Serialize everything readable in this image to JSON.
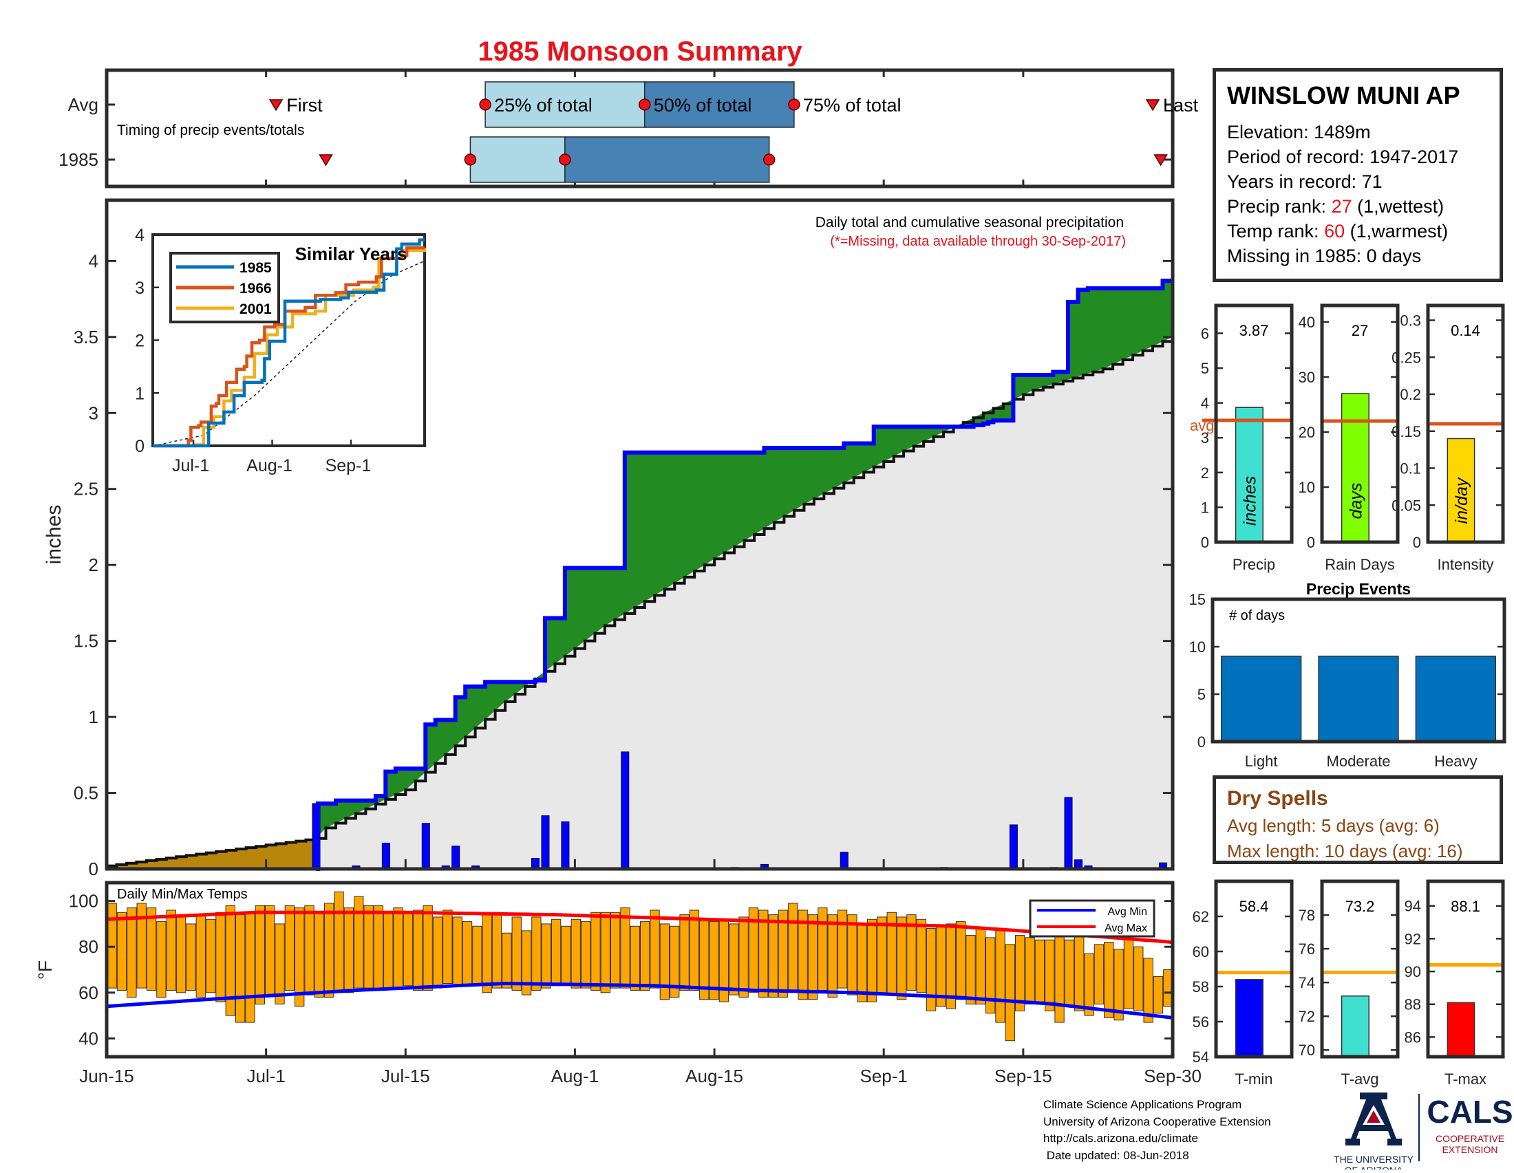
{
  "title": "1985 Monsoon Summary",
  "station": {
    "name": "WINSLOW MUNI AP",
    "elevation": "Elevation: 1489m",
    "period": "Period of record: 1947-2017",
    "years": "Years in record: 71",
    "precip_rank_prefix": "Precip rank: ",
    "precip_rank_value": "27",
    "precip_rank_suffix": " (1,wettest)",
    "temp_rank_prefix": "Temp rank: ",
    "temp_rank_value": "60",
    "temp_rank_suffix": " (1,warmest)",
    "missing": "Missing in 1985: 0 days"
  },
  "dry_spells": {
    "title": "Dry Spells",
    "avg_length": "Avg length: 5 days (avg: 6)",
    "max_length": "Max length: 10 days (avg: 16)"
  },
  "credits": {
    "line1": "Climate Science Applications Program",
    "line2": "University of Arizona Cooperative Extension",
    "line3": "http://cals.arizona.edu/climate",
    "line4": "Date updated: 08-Jun-2018"
  },
  "logos": {
    "ua_line1": "THE UNIVERSITY",
    "ua_line2": "OF ARIZONA",
    "cals": "CALS",
    "cals_line1": "COOPERATIVE",
    "cals_line2": "EXTENSION"
  },
  "colors": {
    "title": "#e8131b",
    "precip_green": "#228b22",
    "cum_blue": "#0000ff",
    "temp_bar": "#ffa500",
    "avg_max": "#ff0000",
    "avg_min": "#0000ff",
    "dry": "#8b4513"
  },
  "chart_data": [
    {
      "id": "timing",
      "type": "bar",
      "title": "1985 Monsoon Summary",
      "xlim": [
        0,
        107
      ],
      "y_categories": [
        "Avg",
        "1985"
      ],
      "annotation": "Timing of precip events/totals",
      "avg": {
        "first": 17,
        "p25": 38,
        "p50": 54,
        "p75": 69,
        "last": 105,
        "first_label": "First",
        "p25_label": "25% of total",
        "p50_label": "50% of total",
        "p75_label": "75% of total",
        "last_label": "Last"
      },
      "year": {
        "first": 22,
        "p25": 36.5,
        "p50": 46,
        "p75": 66.5,
        "last": 105.8
      }
    },
    {
      "id": "precip",
      "type": "area",
      "xlabel": "",
      "ylabel": "inches",
      "ylim": [
        0,
        4.4
      ],
      "yticks": [
        0,
        0.5,
        1,
        1.5,
        2,
        2.5,
        3,
        3.5,
        4
      ],
      "xlim": [
        0,
        107
      ],
      "xticks": [
        {
          "d": 0,
          "label": "Jun-15"
        },
        {
          "d": 16,
          "label": "Jul-1"
        },
        {
          "d": 30,
          "label": "Jul-15"
        },
        {
          "d": 47,
          "label": "Aug-1"
        },
        {
          "d": 61,
          "label": "Aug-15"
        },
        {
          "d": 78,
          "label": "Sep-1"
        },
        {
          "d": 92,
          "label": "Sep-15"
        },
        {
          "d": 107,
          "label": "Sep-30"
        }
      ],
      "annotation": "Daily total and cumulative seasonal precipitation",
      "missing_note": "(*=Missing, data available through 30-Sep-2017)",
      "avg_cumulative": [
        [
          0,
          0.02
        ],
        [
          21,
          0.2
        ],
        [
          22,
          0.27
        ],
        [
          30,
          0.52
        ],
        [
          40,
          1.1
        ],
        [
          50,
          1.6
        ],
        [
          60,
          2.0
        ],
        [
          70,
          2.4
        ],
        [
          80,
          2.75
        ],
        [
          88,
          3.0
        ],
        [
          93,
          3.15
        ],
        [
          100,
          3.29
        ],
        [
          107,
          3.5
        ]
      ],
      "cumulative_1985": [
        [
          21,
          0.0
        ],
        [
          21.2,
          0.43
        ],
        [
          23,
          0.45
        ],
        [
          27,
          0.48
        ],
        [
          28,
          0.64
        ],
        [
          29,
          0.66
        ],
        [
          32,
          0.95
        ],
        [
          33,
          0.98
        ],
        [
          35,
          1.13
        ],
        [
          36,
          1.2
        ],
        [
          38,
          1.23
        ],
        [
          43,
          1.24
        ],
        [
          44,
          1.65
        ],
        [
          46,
          1.98
        ],
        [
          52,
          2.74
        ],
        [
          63,
          2.74
        ],
        [
          66,
          2.77
        ],
        [
          74,
          2.8
        ],
        [
          77,
          2.91
        ],
        [
          82,
          2.91
        ],
        [
          87,
          2.92
        ],
        [
          88,
          2.93
        ],
        [
          88.5,
          2.94
        ],
        [
          89,
          2.95
        ],
        [
          91,
          3.25
        ],
        [
          95,
          3.27
        ],
        [
          96.5,
          3.73
        ],
        [
          97.5,
          3.81
        ],
        [
          98.5,
          3.82
        ],
        [
          106,
          3.87
        ],
        [
          107,
          3.87
        ]
      ],
      "daily_1985": [
        [
          21,
          0.43
        ],
        [
          25,
          0.02
        ],
        [
          28,
          0.17
        ],
        [
          32,
          0.3
        ],
        [
          34,
          0.02
        ],
        [
          35,
          0.15
        ],
        [
          37,
          0.02
        ],
        [
          43,
          0.07
        ],
        [
          44,
          0.35
        ],
        [
          46,
          0.31
        ],
        [
          52,
          0.77
        ],
        [
          63,
          0.01
        ],
        [
          66,
          0.03
        ],
        [
          74,
          0.11
        ],
        [
          84,
          0.01
        ],
        [
          91,
          0.29
        ],
        [
          95,
          0.01
        ],
        [
          96.5,
          0.47
        ],
        [
          97.5,
          0.06
        ],
        [
          98.5,
          0.02
        ],
        [
          106,
          0.04
        ]
      ]
    },
    {
      "id": "similar",
      "type": "line",
      "title": "Similar Years",
      "ylim": [
        0,
        4
      ],
      "xlim": [
        0,
        107
      ],
      "yticks": [
        0,
        1,
        2,
        3,
        4
      ],
      "xticks": [
        {
          "d": 16,
          "label": "Jul-1"
        },
        {
          "d": 47,
          "label": "Aug-1"
        },
        {
          "d": 78,
          "label": "Sep-1"
        }
      ],
      "series": [
        {
          "name": "1985",
          "color": "#0072bd",
          "points": [
            [
              0,
              0
            ],
            [
              21,
              0
            ],
            [
              22,
              0.43
            ],
            [
              28,
              0.64
            ],
            [
              32,
              0.95
            ],
            [
              36,
              1.2
            ],
            [
              43,
              1.24
            ],
            [
              44,
              1.65
            ],
            [
              46,
              1.98
            ],
            [
              52,
              2.74
            ],
            [
              63,
              2.74
            ],
            [
              66,
              2.77
            ],
            [
              74,
              2.8
            ],
            [
              77,
              2.91
            ],
            [
              88,
              2.95
            ],
            [
              91,
              3.25
            ],
            [
              96,
              3.73
            ],
            [
              98,
              3.82
            ],
            [
              105,
              3.9
            ],
            [
              107,
              3.9
            ]
          ]
        },
        {
          "name": "1966",
          "color": "#d95319",
          "points": [
            [
              0,
              0
            ],
            [
              14,
              0.1
            ],
            [
              15,
              0.35
            ],
            [
              18,
              0.38
            ],
            [
              19,
              0.45
            ],
            [
              23,
              0.75
            ],
            [
              25,
              0.8
            ],
            [
              26,
              0.95
            ],
            [
              29,
              1.2
            ],
            [
              32,
              1.2
            ],
            [
              33,
              1.45
            ],
            [
              36,
              1.5
            ],
            [
              37,
              1.7
            ],
            [
              39,
              1.95
            ],
            [
              42,
              2.0
            ],
            [
              44,
              2.25
            ],
            [
              48,
              2.3
            ],
            [
              52,
              2.55
            ],
            [
              60,
              2.62
            ],
            [
              64,
              2.85
            ],
            [
              72,
              2.9
            ],
            [
              76,
              3.05
            ],
            [
              81,
              3.1
            ],
            [
              88,
              3.2
            ],
            [
              90,
              3.55
            ],
            [
              98,
              3.6
            ],
            [
              100,
              3.75
            ],
            [
              107,
              3.75
            ]
          ]
        },
        {
          "name": "2001",
          "color": "#edb120",
          "points": [
            [
              0,
              0
            ],
            [
              17,
              0.02
            ],
            [
              20,
              0.35
            ],
            [
              24,
              0.55
            ],
            [
              28,
              0.85
            ],
            [
              31,
              1.05
            ],
            [
              36,
              1.3
            ],
            [
              40,
              1.75
            ],
            [
              45,
              2.1
            ],
            [
              49,
              2.25
            ],
            [
              55,
              2.5
            ],
            [
              64,
              2.55
            ],
            [
              68,
              2.85
            ],
            [
              76,
              2.85
            ],
            [
              79,
              2.95
            ],
            [
              86,
              2.95
            ],
            [
              87,
              3.0
            ],
            [
              89,
              3.55
            ],
            [
              95,
              3.55
            ],
            [
              98,
              3.7
            ],
            [
              107,
              3.75
            ]
          ]
        }
      ],
      "average_points": [
        [
          0,
          0
        ],
        [
          20,
          0.2
        ],
        [
          40,
          0.95
        ],
        [
          60,
          1.85
        ],
        [
          80,
          2.75
        ],
        [
          95,
          3.25
        ],
        [
          107,
          3.5
        ]
      ]
    },
    {
      "id": "temps",
      "type": "bar",
      "annotation": "Daily Min/Max Temps",
      "ylabel": "°F",
      "ylim": [
        32,
        108
      ],
      "yticks": [
        40,
        60,
        80,
        100
      ],
      "xlim": [
        0,
        107
      ],
      "legend": {
        "position": "top-right",
        "min_label": "Avg Min",
        "max_label": "Avg Max"
      },
      "avg_min": [
        [
          0,
          54
        ],
        [
          10,
          57
        ],
        [
          25,
          61
        ],
        [
          40,
          64
        ],
        [
          55,
          63
        ],
        [
          65,
          61
        ],
        [
          75,
          60
        ],
        [
          85,
          58
        ],
        [
          95,
          55
        ],
        [
          107,
          49
        ]
      ],
      "avg_max": [
        [
          0,
          92
        ],
        [
          15,
          95
        ],
        [
          30,
          95
        ],
        [
          45,
          94
        ],
        [
          60,
          92
        ],
        [
          75,
          90
        ],
        [
          85,
          89
        ],
        [
          95,
          86
        ],
        [
          107,
          82
        ]
      ],
      "daily_min": [
        62,
        61,
        58,
        62,
        61,
        58,
        61,
        60,
        61,
        58,
        60,
        56,
        50,
        47,
        47,
        55,
        59,
        55,
        61,
        54,
        59,
        58,
        58,
        60,
        60,
        62,
        62,
        61,
        62,
        62,
        63,
        61,
        61,
        62,
        64,
        63,
        63,
        63,
        60,
        62,
        62,
        61,
        59,
        61,
        62,
        63,
        64,
        62,
        62,
        61,
        60,
        62,
        62,
        61,
        61,
        62,
        57,
        58,
        61,
        61,
        57,
        57,
        56,
        59,
        58,
        60,
        58,
        58,
        58,
        61,
        57,
        57,
        61,
        58,
        62,
        59,
        56,
        56,
        59,
        59,
        57,
        61,
        60,
        52,
        54,
        53,
        57,
        55,
        55,
        51,
        47,
        39,
        52,
        55,
        56,
        52,
        47,
        54,
        52,
        50,
        55,
        49,
        48,
        53,
        52,
        47,
        51,
        54
      ],
      "daily_max": [
        99,
        95,
        97,
        99,
        97,
        91,
        96,
        94,
        90,
        94,
        92,
        95,
        98,
        94,
        95,
        98,
        98,
        90,
        98,
        97,
        98,
        95,
        99,
        104,
        97,
        102,
        98,
        98,
        95,
        97,
        95,
        96,
        98,
        93,
        96,
        93,
        91,
        89,
        94,
        95,
        86,
        93,
        87,
        93,
        90,
        92,
        89,
        92,
        91,
        95,
        95,
        95,
        97,
        89,
        91,
        96,
        90,
        89,
        94,
        96,
        92,
        91,
        92,
        90,
        93,
        97,
        96,
        94,
        96,
        99,
        96,
        94,
        97,
        94,
        96,
        94,
        90,
        92,
        93,
        95,
        93,
        94,
        92,
        88,
        89,
        90,
        91,
        85,
        88,
        84,
        87,
        81,
        85,
        84,
        83,
        83,
        87,
        83,
        86,
        77,
        81,
        82,
        79,
        83,
        80,
        75,
        67,
        70
      ]
    },
    {
      "id": "season_precip",
      "type": "bar",
      "categories": [
        "Precip",
        "Rain Days",
        "Intensity"
      ],
      "panels": [
        {
          "category": "Precip",
          "value": 3.87,
          "value_label": "3.87",
          "avg": 3.5,
          "avg_label": "avg",
          "unit_label": "inches",
          "ylim": [
            0,
            6.8
          ],
          "yticks": [
            0,
            1,
            2,
            3,
            4,
            5,
            6
          ],
          "color": "#40e0d0"
        },
        {
          "category": "Rain Days",
          "value": 27,
          "value_label": "27",
          "avg": 22,
          "unit_label": "days",
          "ylim": [
            0,
            43
          ],
          "yticks": [
            0,
            10,
            20,
            30,
            40
          ],
          "color": "#7fff00"
        },
        {
          "category": "Intensity",
          "value": 0.14,
          "value_label": "0.14",
          "avg": 0.16,
          "unit_label": "in/day",
          "ylim": [
            0,
            0.32
          ],
          "yticks": [
            0,
            0.05,
            0.1,
            0.15,
            0.2,
            0.25,
            0.3
          ],
          "ytick_labels": [
            "0",
            "0.05",
            "0.1",
            "0.15",
            "0.2",
            "0.25",
            "0.3"
          ],
          "color": "#ffd700"
        }
      ]
    },
    {
      "id": "events",
      "type": "bar",
      "title": "Precip Events",
      "annotation": "# of days",
      "categories": [
        "Light",
        "Moderate",
        "Heavy"
      ],
      "values": [
        9,
        9,
        9
      ],
      "ylim": [
        0,
        15
      ],
      "yticks": [
        0,
        5,
        10,
        15
      ],
      "color": "#0072bd"
    },
    {
      "id": "season_temp",
      "type": "bar",
      "categories": [
        "T-min",
        "T-avg",
        "T-max"
      ],
      "panels": [
        {
          "category": "T-min",
          "value": 58.4,
          "value_label": "58.4",
          "avg": 58.8,
          "ylim": [
            54,
            64
          ],
          "yticks": [
            54,
            56,
            58,
            60,
            62
          ],
          "color": "#0000ff"
        },
        {
          "category": "T-avg",
          "value": 73.2,
          "value_label": "73.2",
          "avg": 74.6,
          "ylim": [
            69.6,
            80
          ],
          "yticks": [
            70,
            72,
            74,
            76,
            78
          ],
          "color": "#40e0d0"
        },
        {
          "category": "T-max",
          "value": 88.1,
          "value_label": "88.1",
          "avg": 90.4,
          "ylim": [
            84.8,
            95.5
          ],
          "yticks": [
            86,
            88,
            90,
            92,
            94
          ],
          "color": "#ff0000"
        }
      ]
    }
  ]
}
